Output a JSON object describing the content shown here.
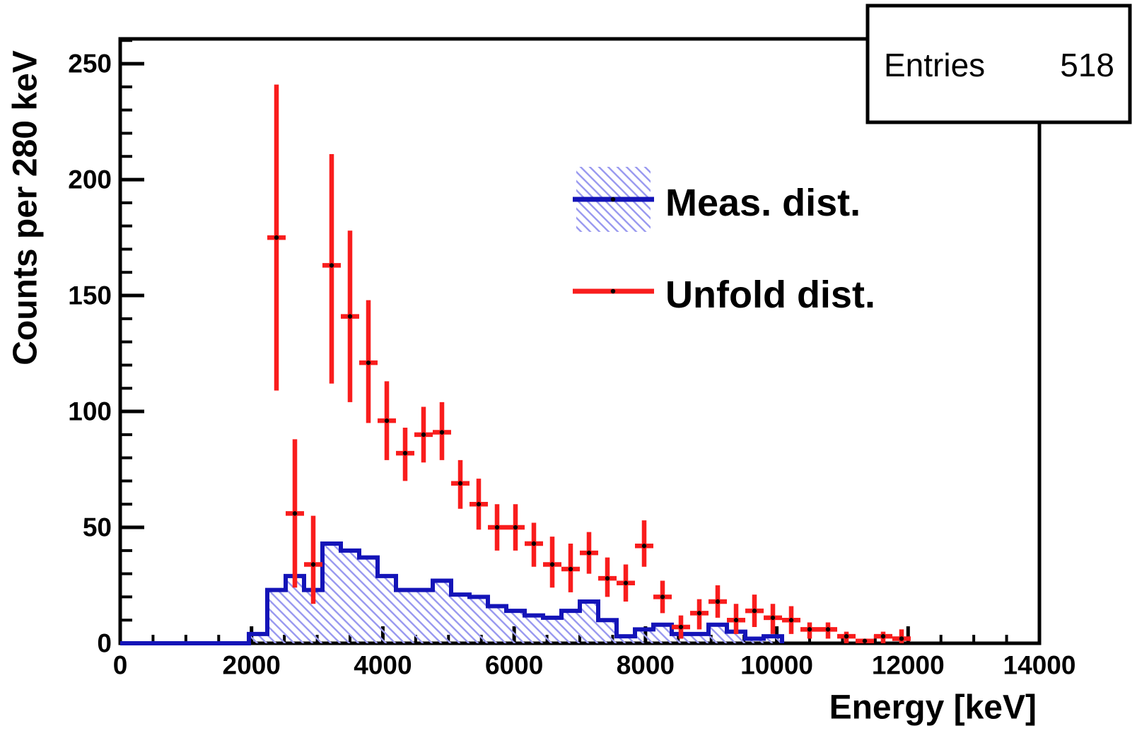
{
  "stats": {
    "entries_label": "Entries",
    "entries_value": "518"
  },
  "legend": {
    "items": [
      {
        "label": "Meas. dist.",
        "swatch": "blue-hatched-box-with-line",
        "marker": "black-dot"
      },
      {
        "label": "Unfold dist.",
        "swatch": "red-line",
        "marker": "black-dot"
      }
    ]
  },
  "axes": {
    "x_title": "Energy [keV]",
    "y_title": "Counts per 280 keV",
    "x_tick_labels": [
      "0",
      "2000",
      "4000",
      "6000",
      "8000",
      "10000",
      "12000",
      "14000"
    ],
    "y_tick_labels": [
      "0",
      "50",
      "100",
      "150",
      "200",
      "250"
    ]
  },
  "colors": {
    "meas_line": "#1414b8",
    "meas_hatch": "#9a9af0",
    "unfold": "#f91d1d",
    "marker": "#000000",
    "frame": "#000000",
    "background": "#ffffff"
  },
  "chart_data": {
    "type": "bar",
    "subtype": "step-histogram with error-bar points (ROOT style)",
    "title": "",
    "xlabel": "Energy [keV]",
    "ylabel": "Counts per 280 keV",
    "xlim": [
      0,
      14000
    ],
    "ylim": [
      0,
      260.7
    ],
    "x_major_tick_step": 2000,
    "x_minor_tick_step": 500,
    "y_major_tick_step": 50,
    "y_minor_tick_step": 10,
    "grid": false,
    "legend_position": "upper-center-right",
    "bin_width": 280,
    "stats_entries": 518,
    "series": [
      {
        "name": "Meas. dist.",
        "type": "step_histogram",
        "style": "hatched_fill",
        "bin_start_kev": 0,
        "bin_width_kev": 280,
        "values": [
          0,
          0,
          0,
          0,
          0,
          0,
          0,
          4,
          23,
          29,
          23,
          43,
          40,
          37,
          29,
          23,
          23,
          27,
          21,
          20,
          16,
          14,
          12,
          11,
          14,
          18,
          10,
          3,
          6,
          8,
          4,
          4,
          8,
          5,
          2,
          3
        ]
      },
      {
        "name": "Unfold dist.",
        "type": "errorbar",
        "points": [
          {
            "x": 2380,
            "y": 175,
            "lo": 109,
            "hi": 241
          },
          {
            "x": 2660,
            "y": 56,
            "lo": 24,
            "hi": 88
          },
          {
            "x": 2940,
            "y": 34,
            "lo": 17,
            "hi": 55
          },
          {
            "x": 3220,
            "y": 163,
            "lo": 112,
            "hi": 211
          },
          {
            "x": 3500,
            "y": 141,
            "lo": 104,
            "hi": 178
          },
          {
            "x": 3780,
            "y": 121,
            "lo": 95,
            "hi": 148
          },
          {
            "x": 4060,
            "y": 96,
            "lo": 79,
            "hi": 113
          },
          {
            "x": 4340,
            "y": 82,
            "lo": 70,
            "hi": 93
          },
          {
            "x": 4620,
            "y": 90,
            "lo": 78,
            "hi": 102
          },
          {
            "x": 4900,
            "y": 91,
            "lo": 79,
            "hi": 104
          },
          {
            "x": 5180,
            "y": 69,
            "lo": 58,
            "hi": 79
          },
          {
            "x": 5460,
            "y": 60,
            "lo": 49,
            "hi": 71
          },
          {
            "x": 5740,
            "y": 50,
            "lo": 40,
            "hi": 60
          },
          {
            "x": 6020,
            "y": 50,
            "lo": 40,
            "hi": 60
          },
          {
            "x": 6300,
            "y": 43,
            "lo": 33,
            "hi": 52
          },
          {
            "x": 6580,
            "y": 34,
            "lo": 24,
            "hi": 46
          },
          {
            "x": 6860,
            "y": 32,
            "lo": 22,
            "hi": 43
          },
          {
            "x": 7140,
            "y": 39,
            "lo": 30,
            "hi": 48
          },
          {
            "x": 7420,
            "y": 28,
            "lo": 20,
            "hi": 37
          },
          {
            "x": 7700,
            "y": 26,
            "lo": 18,
            "hi": 34
          },
          {
            "x": 7980,
            "y": 42,
            "lo": 33,
            "hi": 53
          },
          {
            "x": 8260,
            "y": 20,
            "lo": 13,
            "hi": 27
          },
          {
            "x": 8540,
            "y": 7,
            "lo": 2,
            "hi": 12
          },
          {
            "x": 8820,
            "y": 13,
            "lo": 6,
            "hi": 19
          },
          {
            "x": 9100,
            "y": 18,
            "lo": 11,
            "hi": 25
          },
          {
            "x": 9380,
            "y": 10,
            "lo": 4,
            "hi": 17
          },
          {
            "x": 9660,
            "y": 14,
            "lo": 7,
            "hi": 21
          },
          {
            "x": 9940,
            "y": 11,
            "lo": 4,
            "hi": 17
          },
          {
            "x": 10220,
            "y": 10,
            "lo": 4,
            "hi": 16
          },
          {
            "x": 10500,
            "y": 6,
            "lo": 2,
            "hi": 9
          },
          {
            "x": 10780,
            "y": 6,
            "lo": 2,
            "hi": 9
          },
          {
            "x": 11060,
            "y": 3,
            "lo": 0,
            "hi": 5
          },
          {
            "x": 11340,
            "y": 1,
            "lo": 0,
            "hi": 2
          },
          {
            "x": 11620,
            "y": 3,
            "lo": 0,
            "hi": 5
          },
          {
            "x": 11900,
            "y": 2,
            "lo": 0,
            "hi": 6
          }
        ]
      }
    ]
  }
}
